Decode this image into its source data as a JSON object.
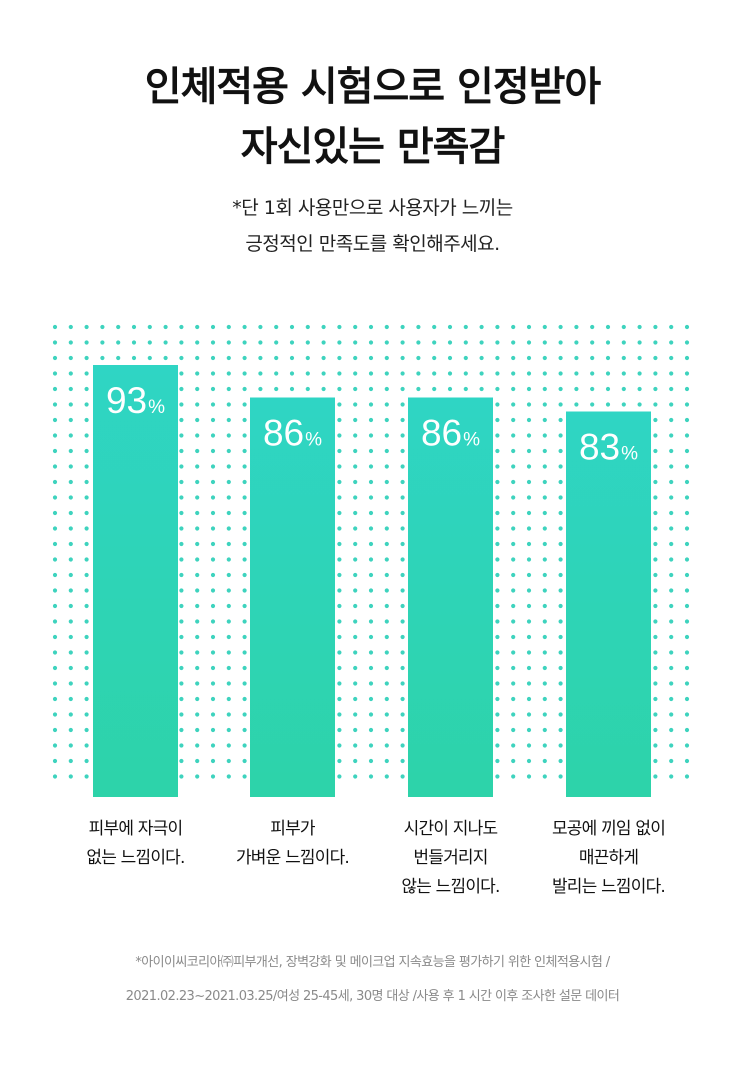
{
  "header": {
    "title_line1": "인체적용 시험으로 인정받아",
    "title_line2": "자신있는 만족감",
    "subtitle_line1": "*단 1회 사용만으로 사용자가 느끼는",
    "subtitle_line2": "긍정적인 만족도를 확인해주세요."
  },
  "chart_data": {
    "type": "bar",
    "unit": "%",
    "ylim": [
      0,
      100
    ],
    "categories": [
      [
        "피부에 자극이",
        "없는 느낌이다."
      ],
      [
        "피부가",
        "가벼운 느낌이다."
      ],
      [
        "시간이 지나도",
        "번들거리지",
        "않는 느낌이다."
      ],
      [
        "모공에 끼임 없이",
        "매끈하게",
        "발리는 느낌이다."
      ]
    ],
    "values": [
      93,
      86,
      86,
      83
    ],
    "colors": {
      "bar_top": "#2fd5c4",
      "bar_bottom": "#2dd3a9",
      "dots": "#3ed3be"
    },
    "grid": false,
    "legend": "none"
  },
  "footnote": {
    "line1": "*아이이씨코리아㈜피부개선, 장벽강화 및 메이크업 지속효능을 평가하기 위한 인체적용시험 /",
    "line2": "2021.02.23~2021.03.25/여성 25-45세, 30명 대상 /사용 후 1 시간 이후 조사한 설문 데이터"
  }
}
